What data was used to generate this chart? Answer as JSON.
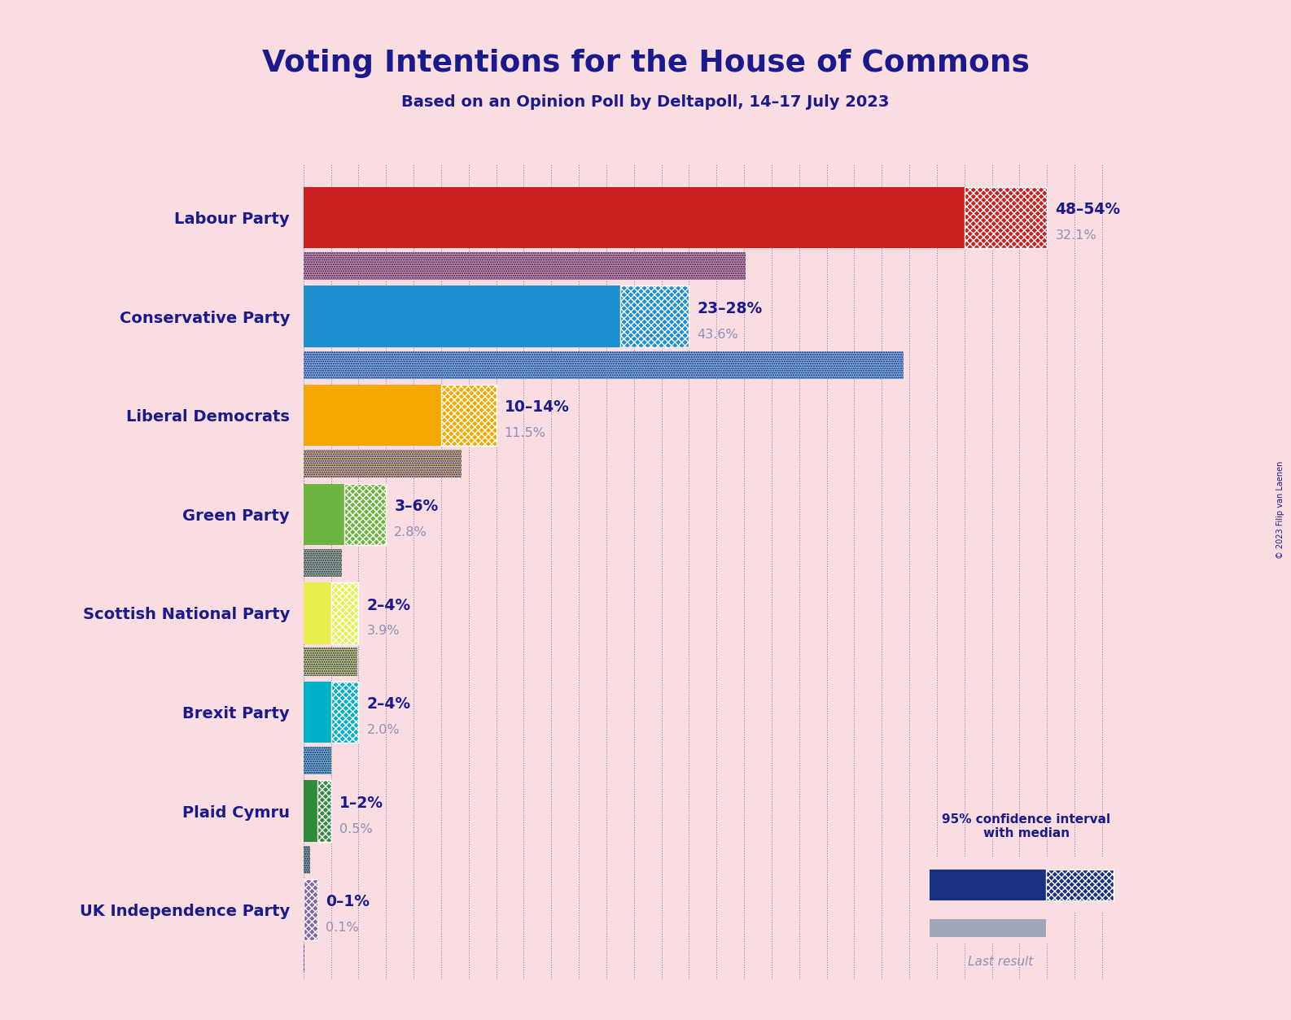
{
  "title": "Voting Intentions for the House of Commons",
  "subtitle": "Based on an Opinion Poll by Deltapoll, 14–17 July 2023",
  "copyright": "© 2023 Filip van Laenen",
  "background_color": "#f9dde1",
  "title_color": "#1a1a8c",
  "parties": [
    {
      "name": "Labour Party",
      "ci_low": 48,
      "ci_high": 54,
      "last": 32.1,
      "color": "#cc2020",
      "last_color": "#d89090",
      "label_range": "48–54%",
      "label_last": "32.1%"
    },
    {
      "name": "Conservative Party",
      "ci_low": 23,
      "ci_high": 28,
      "last": 43.6,
      "color": "#1e90d0",
      "last_color": "#80b8d8",
      "label_range": "23–28%",
      "label_last": "43.6%"
    },
    {
      "name": "Liberal Democrats",
      "ci_low": 10,
      "ci_high": 14,
      "last": 11.5,
      "color": "#f5a800",
      "last_color": "#d8b870",
      "label_range": "10–14%",
      "label_last": "11.5%"
    },
    {
      "name": "Green Party",
      "ci_low": 3,
      "ci_high": 6,
      "last": 2.8,
      "color": "#6db33f",
      "last_color": "#a0b878",
      "label_range": "3–6%",
      "label_last": "2.8%"
    },
    {
      "name": "Scottish National Party",
      "ci_low": 2,
      "ci_high": 4,
      "last": 3.9,
      "color": "#e8f050",
      "last_color": "#c8d060",
      "label_range": "2–4%",
      "label_last": "3.9%"
    },
    {
      "name": "Brexit Party",
      "ci_low": 2,
      "ci_high": 4,
      "last": 2.0,
      "color": "#00b0c8",
      "last_color": "#70b8c0",
      "label_range": "2–4%",
      "label_last": "2.0%"
    },
    {
      "name": "Plaid Cymru",
      "ci_low": 1,
      "ci_high": 2,
      "last": 0.5,
      "color": "#2e8b3a",
      "last_color": "#80a880",
      "label_range": "1–2%",
      "label_last": "0.5%"
    },
    {
      "name": "UK Independence Party",
      "ci_low": 0,
      "ci_high": 1,
      "last": 0.1,
      "color": "#8b60a8",
      "last_color": "#b090c0",
      "label_range": "0–1%",
      "label_last": "0.1%"
    }
  ],
  "xlim": [
    0,
    60
  ],
  "ci_bar_height": 0.62,
  "last_bar_height": 0.28,
  "legend_text_ci": "95% confidence interval\nwith median",
  "legend_text_last": "Last result",
  "legend_color_ci": "#1a3080",
  "legend_color_last": "#a0a8b8"
}
